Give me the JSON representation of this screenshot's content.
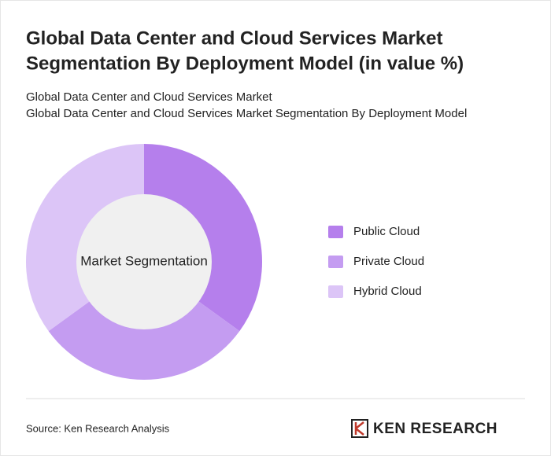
{
  "chart_data": {
    "type": "donut",
    "title": [
      "Global Data Center and Cloud Services Market",
      "Segmentation By Deployment Model (in value %)"
    ],
    "subtitle": [
      "Global Data Center and Cloud Services Market",
      "Global Data Center and Cloud Services Market Segmentation By Deployment Model"
    ],
    "center_label": "Market Segmentation",
    "categories": [
      "Public Cloud",
      "Private Cloud",
      "Hybrid Cloud"
    ],
    "values": [
      35,
      30,
      35
    ],
    "colors": [
      "#b57fec",
      "#c49cf1",
      "#dcc5f7"
    ],
    "source": "Source: Ken Research Analysis",
    "logo": "KEN RESEARCH"
  }
}
